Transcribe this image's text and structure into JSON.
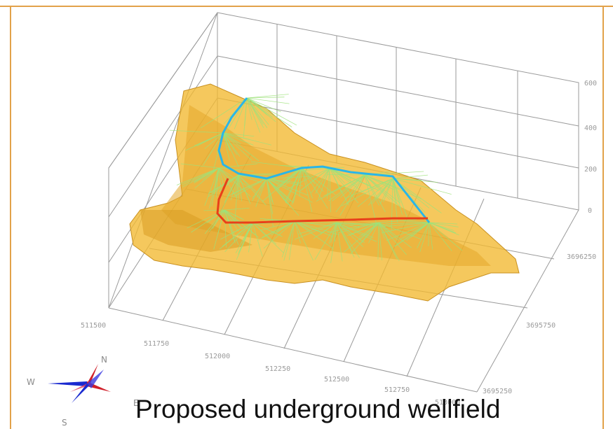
{
  "caption": "Proposed underground wellfield",
  "axes": {
    "z_ticks": [
      "600",
      "400",
      "200",
      "0"
    ],
    "y_ticks": [
      "3696250",
      "3695750",
      "3695250"
    ],
    "x_ticks": [
      "511500",
      "511750",
      "512000",
      "512250",
      "512500",
      "512750",
      "513000"
    ]
  },
  "compass": {
    "north": "N",
    "west": "W",
    "south": "S",
    "east": "E"
  },
  "colors": {
    "terrain": "#f2b830",
    "terrain_edge": "#c89020",
    "well_lines": "#9ee27a",
    "cyan_path": "#29b6e8",
    "red_path": "#e8401a",
    "grid": "#9a9a9a",
    "border": "#e2a24a"
  }
}
